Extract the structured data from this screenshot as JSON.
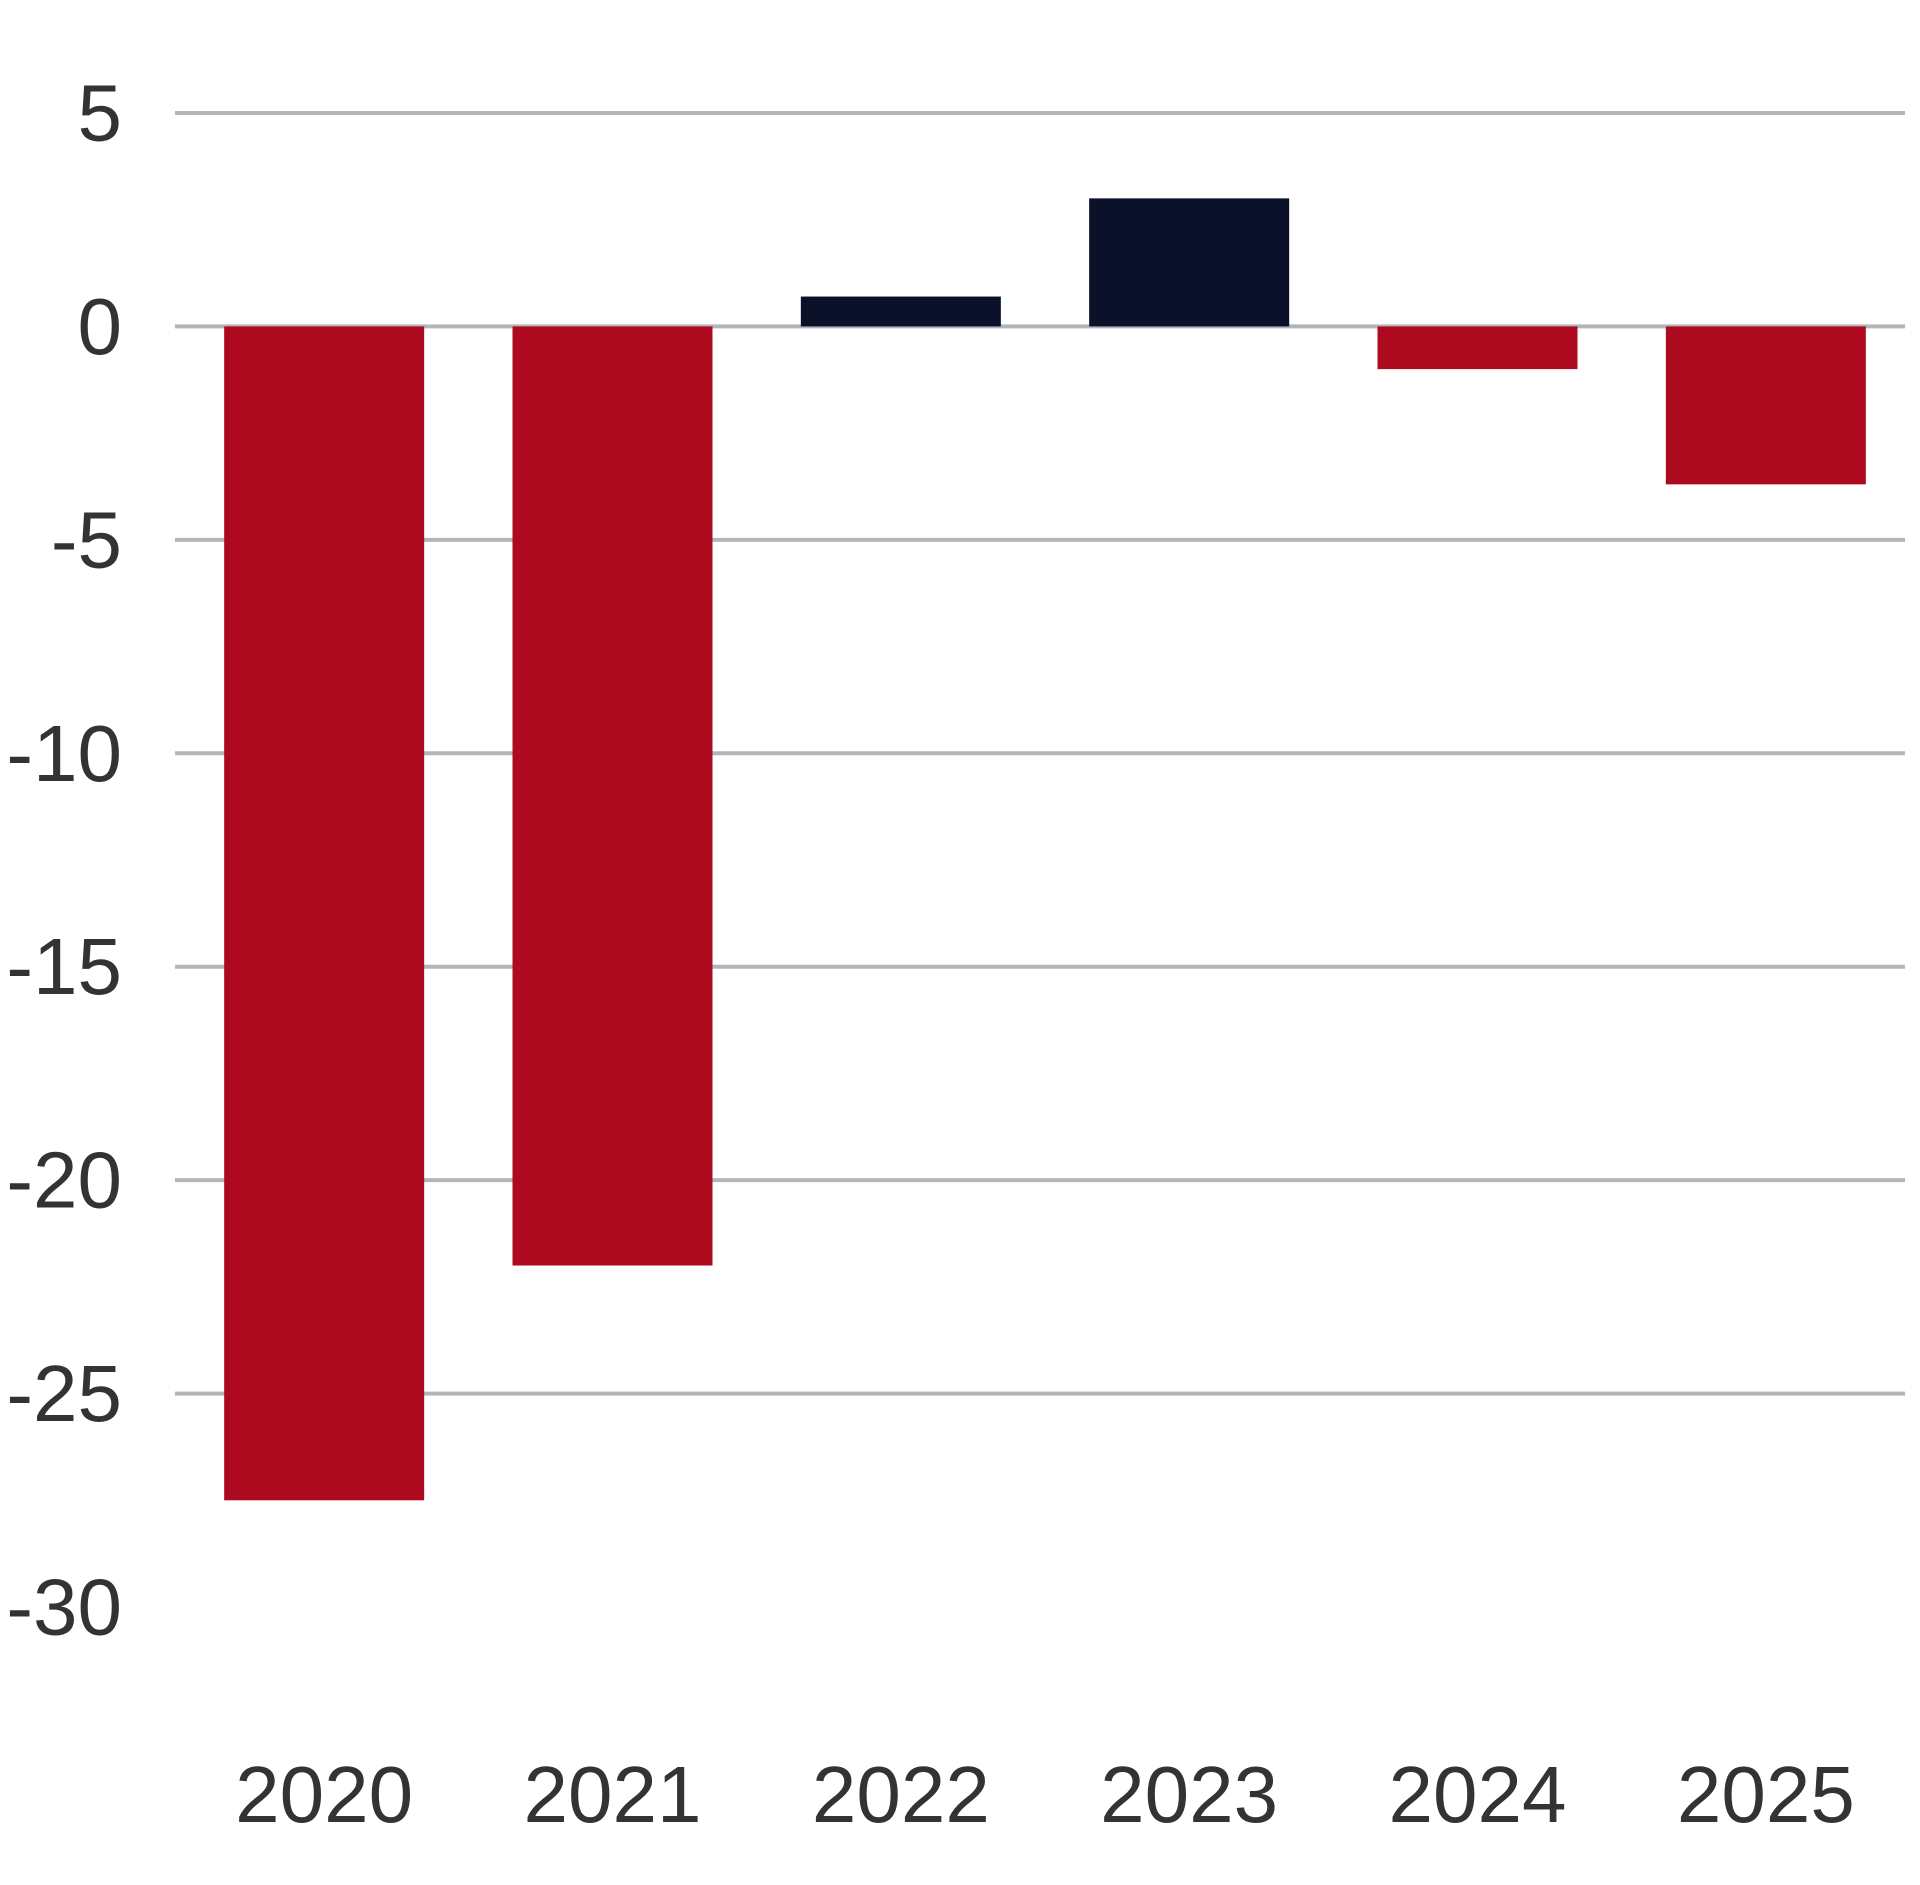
{
  "chart_data": {
    "type": "bar",
    "categories": [
      "2020",
      "2021",
      "2022",
      "2023",
      "2024",
      "2025"
    ],
    "values": [
      -27.5,
      -22,
      0.7,
      3,
      -1,
      -3.7
    ],
    "ylim": [
      -30,
      5
    ],
    "yticks": [
      5,
      0,
      -5,
      -10,
      -15,
      -20,
      -25,
      -30
    ],
    "ytick_labels": [
      "5",
      "0",
      "-5",
      "-10",
      "-15",
      "-20",
      "-25",
      "-30"
    ],
    "grid": true,
    "title": "",
    "xlabel": "",
    "ylabel": "",
    "colors": {
      "positive": "#0a1128",
      "negative": "#ad0a20",
      "grid": "#b3b5ba",
      "text": "#333333"
    }
  }
}
